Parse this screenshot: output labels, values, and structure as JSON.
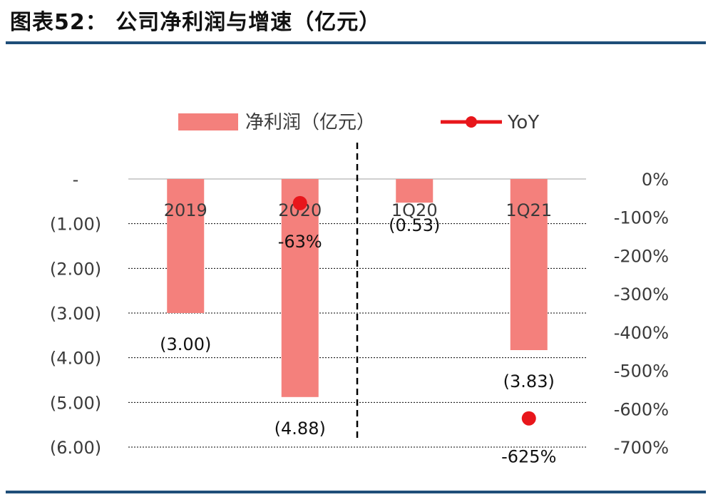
{
  "header": {
    "title": "图表52：  公司净利润与增速（亿元）"
  },
  "colors": {
    "rule": "#1f4e79",
    "bar": "#f4807c",
    "yoy": "#e8161b",
    "grid": "#000000",
    "zero": "#bfbfbf",
    "text": "#3a3a3a"
  },
  "chart_data": {
    "type": "bar",
    "categories": [
      "2019",
      "2020",
      "1Q20",
      "1Q21"
    ],
    "series": [
      {
        "name": "净利润（亿元）",
        "type": "bar",
        "axis": "left",
        "values": [
          -3.0,
          -4.88,
          -0.53,
          -3.83
        ],
        "labels": [
          "(3.00)",
          "(4.88)",
          "(0.53)",
          "(3.83)"
        ]
      },
      {
        "name": "YoY",
        "type": "scatter",
        "axis": "right",
        "values": [
          null,
          -63,
          null,
          -625
        ],
        "labels": [
          "",
          "-63%",
          "",
          "-625%"
        ]
      }
    ],
    "y_left": {
      "ylim": [
        -6,
        0
      ],
      "ticks": [
        0,
        -1,
        -2,
        -3,
        -4,
        -5,
        -6
      ],
      "tick_labels": [
        "-",
        "(1.00)",
        "(2.00)",
        "(3.00)",
        "(4.00)",
        "(5.00)",
        "(6.00)"
      ]
    },
    "y_right": {
      "ylim": [
        -700,
        0
      ],
      "ticks": [
        0,
        -100,
        -200,
        -300,
        -400,
        -500,
        -600,
        -700
      ],
      "tick_labels": [
        "0%",
        "-100%",
        "-200%",
        "-300%",
        "-400%",
        "-500%",
        "-600%",
        "-700%"
      ]
    },
    "legend": {
      "position": "top",
      "items": [
        "净利润（亿元）",
        "YoY"
      ]
    },
    "divider_after_category": 1,
    "grid": "dotted horizontal"
  }
}
